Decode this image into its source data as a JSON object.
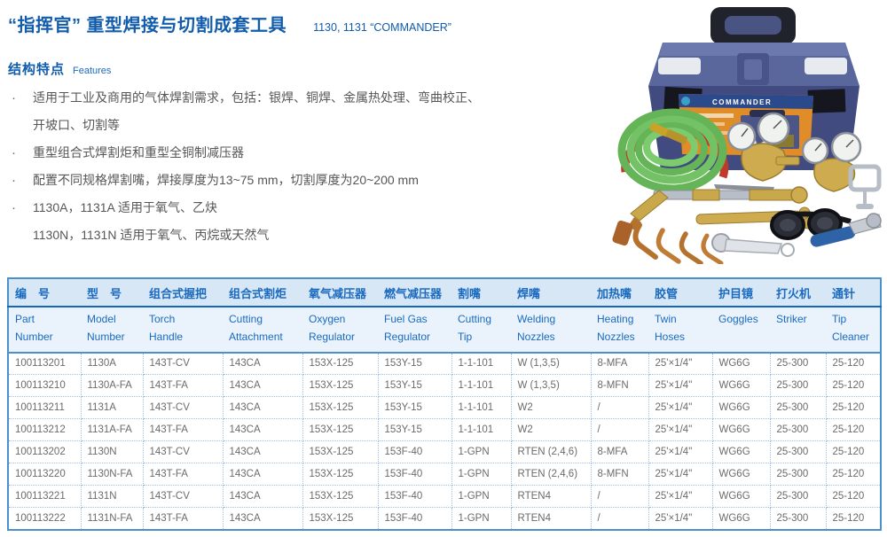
{
  "colors": {
    "accent_blue": "#115cab",
    "table_header_blue": "#1a6ac0",
    "table_border_blue": "#4a90cc",
    "body_text_gray": "#565656"
  },
  "header": {
    "title_zh": "“指挥官” 重型焊接与切割成套工具",
    "title_en": "1130, 1131 “COMMANDER”"
  },
  "features": {
    "heading_zh": "结构特点",
    "heading_en": "Features",
    "bullets": [
      {
        "lines": [
          "适用于工业及商用的气体焊割需求，包括：银焊、铜焊、金属热处理、弯曲校正、",
          "开坡口、切割等"
        ]
      },
      {
        "lines": [
          "重型组合式焊割炬和重型全铜制减压器"
        ]
      },
      {
        "lines": [
          "配置不同规格焊割嘴，焊接厚度为13~75 mm，切割厚度为20~200 mm"
        ]
      },
      {
        "lines": [
          "1130A，1131A 适用于氧气、乙炔",
          "1130N，1131N 适用于氧气、丙烷或天然气"
        ]
      }
    ]
  },
  "photo": {
    "description": "blue toolbox welding and cutting kit",
    "box_label": "COMMANDER"
  },
  "table": {
    "columns": [
      {
        "zh": "编　号",
        "en": "Part\nNumber"
      },
      {
        "zh": "型　号",
        "en": "Model\nNumber"
      },
      {
        "zh": "组合式握把",
        "en": "Torch\nHandle"
      },
      {
        "zh": "组合式割炬",
        "en": "Cutting\nAttachment"
      },
      {
        "zh": "氧气减压器",
        "en": "Oxygen\nRegulator"
      },
      {
        "zh": "燃气减压器",
        "en": "Fuel Gas\nRegulator"
      },
      {
        "zh": "割嘴",
        "en": "Cutting\nTip"
      },
      {
        "zh": "焊嘴",
        "en": "Welding\nNozzles"
      },
      {
        "zh": "加热嘴",
        "en": "Heating\nNozzles"
      },
      {
        "zh": "胶管",
        "en": "Twin\nHoses"
      },
      {
        "zh": "护目镜",
        "en": "Goggles"
      },
      {
        "zh": "打火机",
        "en": "Striker"
      },
      {
        "zh": "通针",
        "en": "Tip\nCleaner"
      }
    ],
    "rows": [
      [
        "100113201",
        "1130A",
        "143T-CV",
        "143CA",
        "153X-125",
        "153Y-15",
        "1-1-101",
        "W (1,3,5)",
        "8-MFA",
        "25'×1/4\"",
        "WG6G",
        "25-300",
        "25-120"
      ],
      [
        "100113210",
        "1130A-FA",
        "143T-FA",
        "143CA",
        "153X-125",
        "153Y-15",
        "1-1-101",
        "W (1,3,5)",
        "8-MFN",
        "25'×1/4\"",
        "WG6G",
        "25-300",
        "25-120"
      ],
      [
        "100113211",
        "1131A",
        "143T-CV",
        "143CA",
        "153X-125",
        "153Y-15",
        "1-1-101",
        "W2",
        "/",
        "25'×1/4\"",
        "WG6G",
        "25-300",
        "25-120"
      ],
      [
        "100113212",
        "1131A-FA",
        "143T-FA",
        "143CA",
        "153X-125",
        "153Y-15",
        "1-1-101",
        "W2",
        "/",
        "25'×1/4\"",
        "WG6G",
        "25-300",
        "25-120"
      ],
      [
        "100113202",
        "1130N",
        "143T-CV",
        "143CA",
        "153X-125",
        "153F-40",
        "1-GPN",
        "RTEN (2,4,6)",
        "8-MFA",
        "25'×1/4\"",
        "WG6G",
        "25-300",
        "25-120"
      ],
      [
        "100113220",
        "1130N-FA",
        "143T-FA",
        "143CA",
        "153X-125",
        "153F-40",
        "1-GPN",
        "RTEN (2,4,6)",
        "8-MFN",
        "25'×1/4\"",
        "WG6G",
        "25-300",
        "25-120"
      ],
      [
        "100113221",
        "1131N",
        "143T-CV",
        "143CA",
        "153X-125",
        "153F-40",
        "1-GPN",
        "RTEN4",
        "/",
        "25'×1/4\"",
        "WG6G",
        "25-300",
        "25-120"
      ],
      [
        "100113222",
        "1131N-FA",
        "143T-FA",
        "143CA",
        "153X-125",
        "153F-40",
        "1-GPN",
        "RTEN4",
        "/",
        "25'×1/4\"",
        "WG6G",
        "25-300",
        "25-120"
      ]
    ]
  }
}
